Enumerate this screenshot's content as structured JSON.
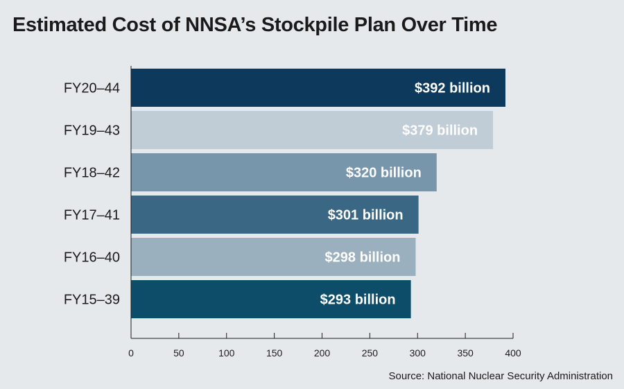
{
  "chart_data": {
    "type": "bar",
    "orientation": "horizontal",
    "title": "Estimated Cost of NNSA’s Stockpile Plan Over Time",
    "source": "Source: National Nuclear Security Administration",
    "categories": [
      "FY20–44",
      "FY19–43",
      "FY18–42",
      "FY17–41",
      "FY16–40",
      "FY15–39"
    ],
    "values": [
      392,
      379,
      320,
      301,
      298,
      293
    ],
    "data_labels": [
      "$392 billion",
      "$379 billion",
      "$320 billion",
      "$301 billion",
      "$298 billion",
      "$293 billion"
    ],
    "bar_colors": [
      "#0d3a5c",
      "#c0ccd6",
      "#7896ab",
      "#3a6783",
      "#9bb0bf",
      "#0e4d6a"
    ],
    "xlim": [
      0,
      400
    ],
    "xticks": [
      0,
      50,
      100,
      150,
      200,
      250,
      300,
      350,
      400
    ],
    "grid": false,
    "legend": "none"
  }
}
